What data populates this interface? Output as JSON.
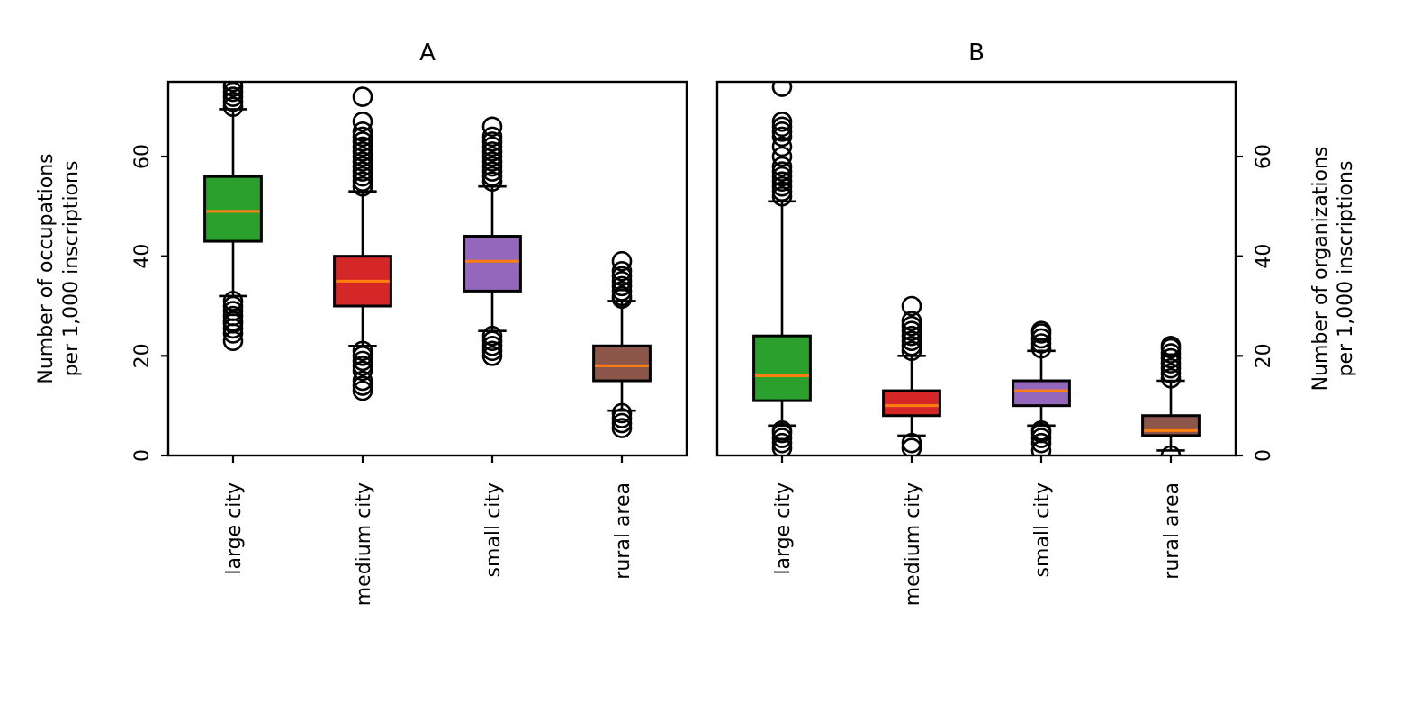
{
  "chart_data": [
    {
      "type": "boxplot",
      "title": "A",
      "ylabel_lines": [
        "Number of occupations",
        "per 1,000 inscriptions"
      ],
      "ylabel_side": "left",
      "ylim": [
        0,
        75
      ],
      "yticks": [
        0,
        20,
        40,
        60
      ],
      "categories": [
        "large city",
        "medium city",
        "small city",
        "rural area"
      ],
      "colors": [
        "#2ca02c",
        "#d62728",
        "#9467bd",
        "#8c564b"
      ],
      "median_color": "#ff7f0e",
      "boxes": [
        {
          "whislo": 32,
          "q1": 43,
          "med": 49,
          "q3": 56,
          "whishi": 69.5,
          "fliers": [
            23,
            24.5,
            25.5,
            26.5,
            27,
            28,
            29,
            30,
            31,
            70,
            71,
            72,
            73,
            74,
            75
          ]
        },
        {
          "whislo": 22,
          "q1": 30,
          "med": 35,
          "q3": 40,
          "whishi": 53,
          "fliers": [
            13,
            14,
            15,
            17,
            18,
            19,
            20,
            21,
            54,
            55,
            56,
            57,
            58,
            59,
            60,
            61,
            62,
            63,
            64,
            65,
            67,
            72
          ]
        },
        {
          "whislo": 25,
          "q1": 33,
          "med": 39,
          "q3": 44,
          "whishi": 54,
          "fliers": [
            20,
            21,
            22,
            23,
            24,
            55,
            56,
            57,
            58,
            59,
            60,
            61,
            62,
            63,
            64,
            66
          ]
        },
        {
          "whislo": 9,
          "q1": 15,
          "med": 18,
          "q3": 22,
          "whishi": 31,
          "fliers": [
            5.5,
            6.5,
            7.5,
            8.5,
            31.5,
            32,
            33,
            34,
            35,
            36,
            37,
            39
          ]
        }
      ]
    },
    {
      "type": "boxplot",
      "title": "B",
      "ylabel_lines": [
        "Number of organizations",
        "per 1,000 inscriptions"
      ],
      "ylabel_side": "right",
      "ylim": [
        0,
        75
      ],
      "yticks": [
        0,
        20,
        40,
        60
      ],
      "categories": [
        "large city",
        "medium city",
        "small city",
        "rural area"
      ],
      "colors": [
        "#2ca02c",
        "#d62728",
        "#9467bd",
        "#8c564b"
      ],
      "median_color": "#ff7f0e",
      "boxes": [
        {
          "whislo": 6,
          "q1": 11,
          "med": 16,
          "q3": 24,
          "whishi": 51,
          "fliers": [
            1.5,
            2.5,
            3.5,
            4.5,
            5,
            52,
            53,
            54,
            55,
            56,
            57,
            58,
            60,
            62,
            64,
            65,
            66,
            67,
            74
          ]
        },
        {
          "whislo": 4,
          "q1": 8,
          "med": 10,
          "q3": 13,
          "whishi": 20,
          "fliers": [
            1.5,
            2.5,
            21,
            22,
            23,
            24,
            25,
            26,
            27,
            30
          ]
        },
        {
          "whislo": 6,
          "q1": 10,
          "med": 13,
          "q3": 15,
          "whishi": 21,
          "fliers": [
            1,
            2.5,
            3.5,
            4.5,
            5,
            21.5,
            22.5,
            23.5,
            24.5,
            25
          ]
        },
        {
          "whislo": 1,
          "q1": 4,
          "med": 5,
          "q3": 8,
          "whishi": 15,
          "fliers": [
            0,
            15.5,
            16.5,
            17.5,
            18.5,
            19.5,
            20.5,
            21.5,
            22
          ]
        }
      ]
    }
  ]
}
